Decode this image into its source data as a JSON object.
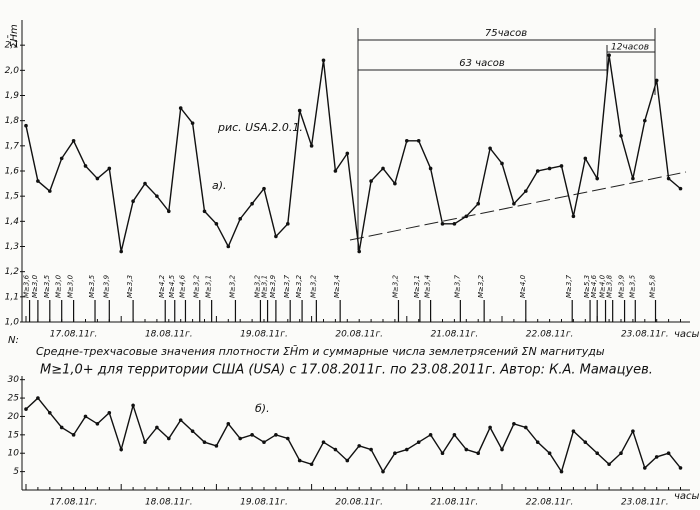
{
  "chart_data": [
    {
      "type": "line",
      "y_label": "ΣH̄m",
      "x_unit": "часы",
      "figure_label": "рис. USA.2.0.1.",
      "panel_label": "а).",
      "spans": [
        "75часов",
        "63 часов",
        "12часов"
      ],
      "ylim": [
        1.0,
        2.2
      ],
      "yticks": [
        {
          "value": 1.0,
          "label": "1,0"
        },
        {
          "value": 1.1,
          "label": "1,1"
        },
        {
          "value": 1.2,
          "label": "1,2"
        },
        {
          "value": 1.3,
          "label": "1,3"
        },
        {
          "value": 1.4,
          "label": "1,4"
        },
        {
          "value": 1.5,
          "label": "1,5"
        },
        {
          "value": 1.6,
          "label": "1,6"
        },
        {
          "value": 1.7,
          "label": "1,7"
        },
        {
          "value": 1.8,
          "label": "1,8"
        },
        {
          "value": 1.9,
          "label": "1,9"
        },
        {
          "value": 2.0,
          "label": "2,0"
        },
        {
          "value": 2.1,
          "label": "2,1"
        }
      ],
      "x_labels": [
        "17.08.11г.",
        "18.08.11г.",
        "19.08.11г.",
        "20.08.11г.",
        "21.08.11г.",
        "22.08.11г.",
        "23.08.11г."
      ],
      "color": "#111111",
      "values": [
        1.78,
        1.56,
        1.52,
        1.65,
        1.72,
        1.62,
        1.57,
        1.61,
        1.28,
        1.48,
        1.55,
        1.5,
        1.44,
        1.85,
        1.79,
        1.44,
        1.39,
        1.3,
        1.41,
        1.47,
        1.53,
        1.34,
        1.39,
        1.84,
        1.7,
        2.04,
        1.6,
        1.67,
        1.28,
        1.56,
        1.61,
        1.55,
        1.72,
        1.72,
        1.61,
        1.39,
        1.39,
        1.42,
        1.47,
        1.69,
        1.63,
        1.47,
        1.52,
        1.6,
        1.61,
        1.62,
        1.42,
        1.65,
        1.57,
        2.06,
        1.74,
        1.57,
        1.8,
        1.96,
        1.57,
        1.53
      ],
      "events": [
        {
          "at": 0.3,
          "label": "M≥3,6"
        },
        {
          "at": 1.0,
          "label": "M≥3,0"
        },
        {
          "at": 2.0,
          "label": "M≥3,5"
        },
        {
          "at": 3.0,
          "label": "M≥3,0"
        },
        {
          "at": 4.0,
          "label": "M≥3,0"
        },
        {
          "at": 5.8,
          "label": "M≥3,5"
        },
        {
          "at": 7.0,
          "label": "M≥3,9"
        },
        {
          "at": 9.0,
          "label": "M≥3,3"
        },
        {
          "at": 11.7,
          "label": "M≥4,2"
        },
        {
          "at": 12.5,
          "label": "M≥4,5"
        },
        {
          "at": 13.4,
          "label": "M≥4,6"
        },
        {
          "at": 14.6,
          "label": "M≥3,2"
        },
        {
          "at": 15.6,
          "label": "M≥3,1"
        },
        {
          "at": 17.6,
          "label": "M≥3,2"
        },
        {
          "at": 19.7,
          "label": "M≥3,2"
        },
        {
          "at": 20.3,
          "label": "M≥3,1"
        },
        {
          "at": 21.0,
          "label": "M≥3,9"
        },
        {
          "at": 22.2,
          "label": "M≥3,7"
        },
        {
          "at": 23.2,
          "label": "M≥3,2"
        },
        {
          "at": 24.4,
          "label": "M≥3,2"
        },
        {
          "at": 26.4,
          "label": "M≥3,4"
        },
        {
          "at": 31.3,
          "label": "M≥3,2"
        },
        {
          "at": 33.1,
          "label": "M≥3,1"
        },
        {
          "at": 34.0,
          "label": "M≥3,4"
        },
        {
          "at": 36.5,
          "label": "M≥3,7"
        },
        {
          "at": 38.5,
          "label": "M≥3,2"
        },
        {
          "at": 42.0,
          "label": "M≥4,0"
        },
        {
          "at": 45.9,
          "label": "M≥3,7"
        },
        {
          "at": 47.4,
          "label": "M≥5,3"
        },
        {
          "at": 48.0,
          "label": "M≥4,6"
        },
        {
          "at": 48.7,
          "label": "M≥4,0"
        },
        {
          "at": 49.3,
          "label": "M≥3,8"
        },
        {
          "at": 50.3,
          "label": "M≥3,9"
        },
        {
          "at": 51.2,
          "label": "M≥3,5"
        },
        {
          "at": 52.9,
          "label": "M≥5,8"
        }
      ]
    },
    {
      "type": "line",
      "y_label": "N:",
      "x_unit": "часы",
      "panel_label": "б).",
      "ylim": [
        0,
        31
      ],
      "yticks": [
        5,
        10,
        15,
        20,
        25,
        30
      ],
      "x_labels": [
        "17.08.11г.",
        "18.08.11г.",
        "19.08.11г.",
        "20.08.11г.",
        "21.08.11г.",
        "22.08.11г.",
        "23.08.11г."
      ],
      "color": "#111111",
      "values": [
        22,
        25,
        21,
        17,
        15,
        20,
        18,
        21,
        11,
        23,
        13,
        17,
        14,
        19,
        16,
        13,
        12,
        18,
        14,
        15,
        13,
        15,
        14,
        8,
        7,
        13,
        11,
        8,
        12,
        11,
        5,
        10,
        11,
        13,
        15,
        10,
        15,
        11,
        10,
        17,
        11,
        18,
        17,
        13,
        10,
        5,
        16,
        13,
        10,
        7,
        10,
        16,
        6,
        9,
        10,
        6
      ]
    }
  ],
  "caption": [
    "Средне-трехчасовые значения плотности ΣH̄m и суммарные числа землетрясений ΣN магнитуды",
    "M≥1,0+ для территории США (USA) с 17.08.2011г. по 23.08.2011г. Автор: К.А. Мамацуев."
  ]
}
